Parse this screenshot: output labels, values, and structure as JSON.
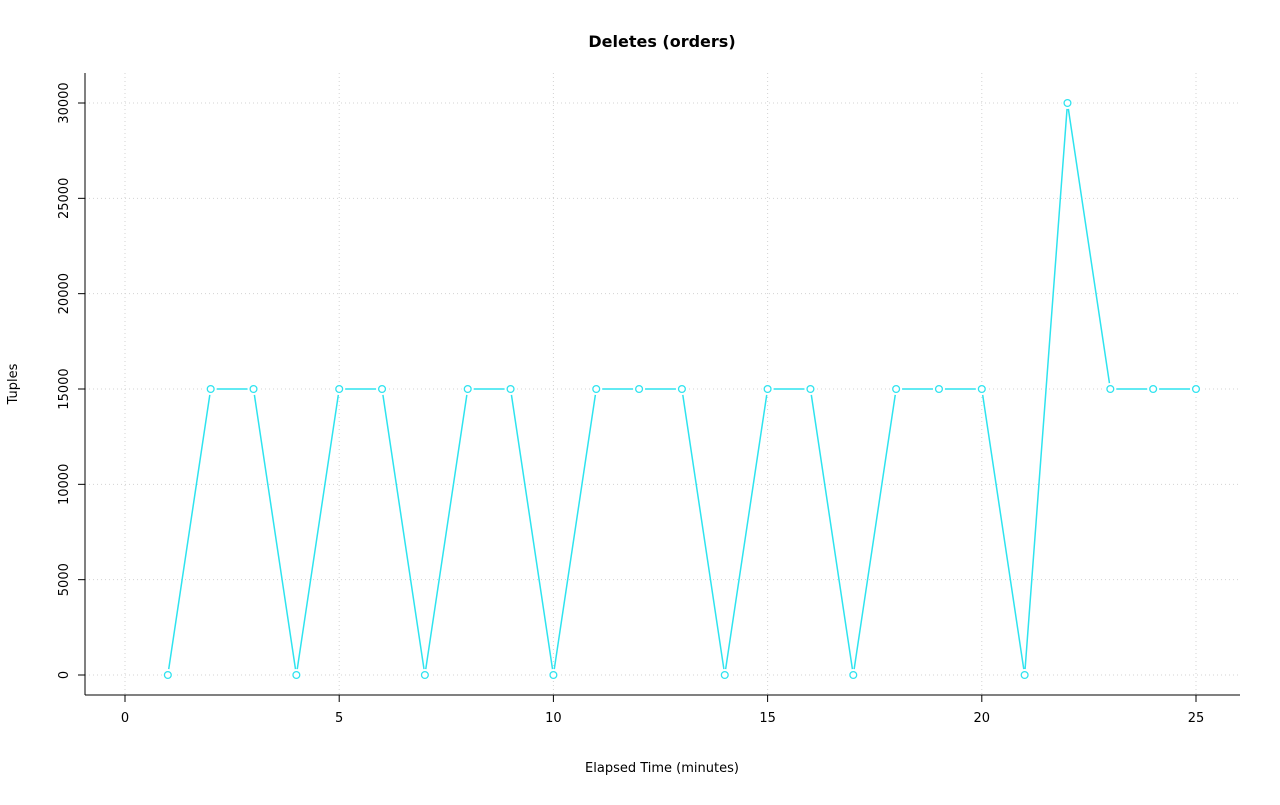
{
  "page": {
    "background": "#ffffff"
  },
  "chart_data": {
    "type": "line",
    "title": "Deletes (orders)",
    "xlabel": "Elapsed Time (minutes)",
    "ylabel": "Tuples",
    "x": [
      1,
      2,
      3,
      4,
      5,
      6,
      7,
      8,
      9,
      10,
      11,
      12,
      13,
      14,
      15,
      16,
      17,
      18,
      19,
      20,
      21,
      22,
      23,
      24,
      25
    ],
    "series": [
      {
        "name": "Deletes (orders)",
        "values": [
          0,
          15000,
          15000,
          0,
          15000,
          15000,
          0,
          15000,
          15000,
          0,
          15000,
          15000,
          15000,
          0,
          15000,
          15000,
          0,
          15000,
          15000,
          15000,
          0,
          30000,
          15000,
          15000,
          15000
        ],
        "color": "#2ee3ef",
        "marker": "open-circle",
        "line_style": "solid"
      }
    ],
    "xlim": [
      0,
      25
    ],
    "ylim": [
      0,
      30000
    ],
    "xticks": [
      0,
      5,
      10,
      15,
      20,
      25
    ],
    "yticks": [
      0,
      5000,
      10000,
      15000,
      20000,
      25000,
      30000
    ],
    "grid": "dotted",
    "grid_color": "#d3d3d3",
    "axis_color": "#000000",
    "legend": "none"
  }
}
